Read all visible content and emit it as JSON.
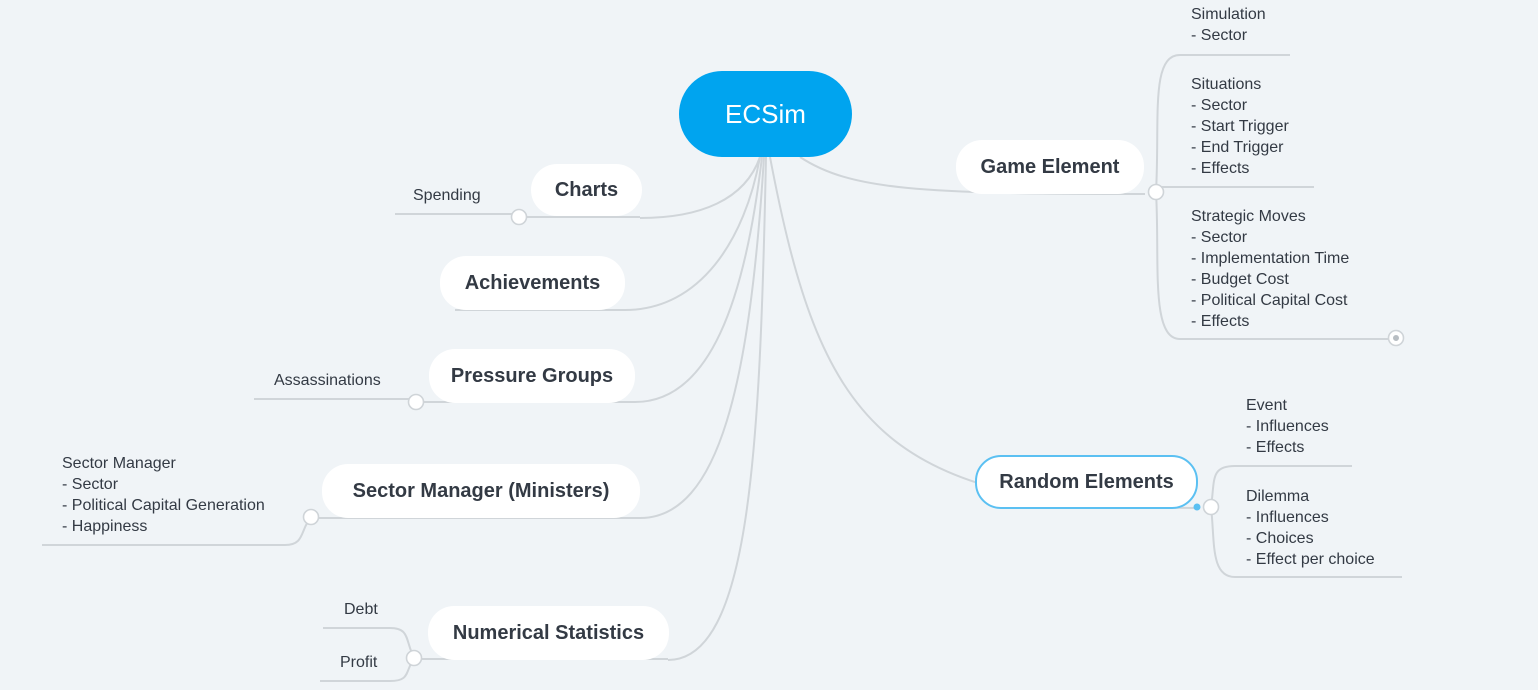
{
  "root": {
    "label": "ECSim"
  },
  "topics": {
    "charts": {
      "label": "Charts",
      "children": [
        "Spending"
      ]
    },
    "achievements": {
      "label": "Achievements",
      "children": []
    },
    "pressure_groups": {
      "label": "Pressure Groups",
      "children": [
        "Assassinations"
      ]
    },
    "sector_manager": {
      "label": "Sector Manager (Ministers)",
      "children": [
        "Sector Manager\n- Sector\n- Political Capital Generation\n- Happiness"
      ]
    },
    "numerical_statistics": {
      "label": "Numerical Statistics",
      "children": [
        "Debt",
        "Profit"
      ]
    },
    "game_element": {
      "label": "Game Element",
      "children": [
        "Simulation\n- Sector",
        "Situations\n- Sector\n- Start Trigger\n- End Trigger\n- Effects",
        "Strategic Moves\n- Sector\n- Implementation Time\n- Budget Cost\n- Political Capital Cost\n- Effects"
      ]
    },
    "random_elements": {
      "label": "Random Elements",
      "children": [
        "Event\n- Influences\n- Effects",
        "Dilemma\n- Influences\n- Choices\n- Effect per choice"
      ]
    }
  }
}
